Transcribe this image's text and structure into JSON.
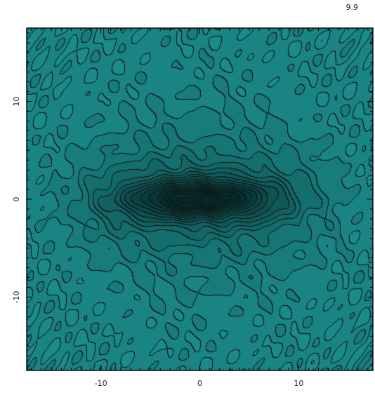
{
  "corner_label": "9.9",
  "chart_data": {
    "type": "heatmap",
    "title": "",
    "xlabel": "",
    "ylabel": "",
    "xlim": [
      -17.5,
      17.5
    ],
    "ylim": [
      -17.5,
      17.5
    ],
    "x_ticks": [
      -10,
      0,
      10
    ],
    "y_ticks": [
      -10,
      0,
      10
    ],
    "grid": false,
    "legend": "none",
    "contour_levels": [
      1,
      2,
      3,
      4,
      5,
      6,
      7,
      8,
      9,
      10,
      11,
      12,
      13,
      14
    ],
    "peak": {
      "x": 0,
      "y": 0,
      "value": 14
    },
    "colors": {
      "low": "#1b8a8a",
      "high": "#062828",
      "contour_line": "#111111",
      "frame": "#000000"
    }
  }
}
